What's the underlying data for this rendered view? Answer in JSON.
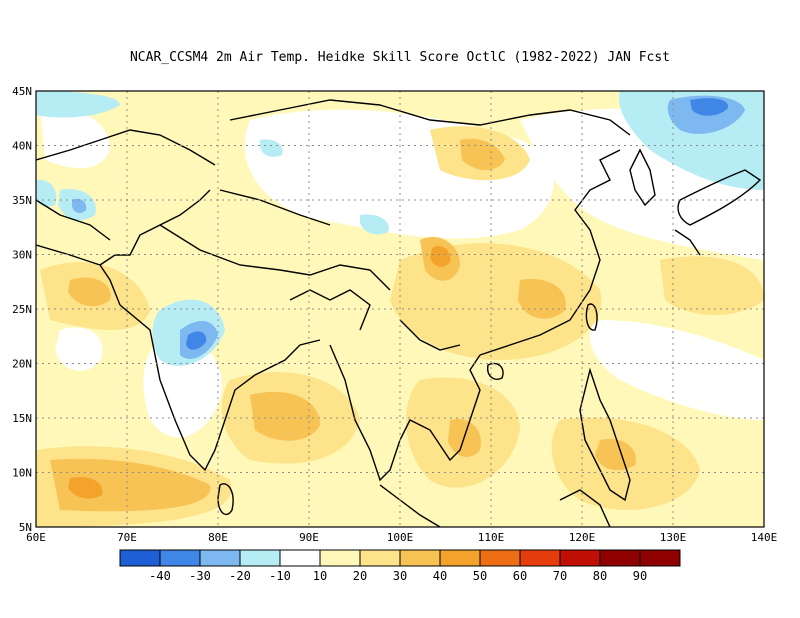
{
  "title": "NCAR_CCSM4  2m Air Temp. Heidke Skill Score OctlC (1982-2022) JAN Fcst",
  "map": {
    "lat_labels": [
      "45N",
      "40N",
      "35N",
      "30N",
      "25N",
      "20N",
      "15N",
      "10N",
      "5N"
    ],
    "lon_labels": [
      "60E",
      "70E",
      "80E",
      "90E",
      "100E",
      "110E",
      "120E",
      "130E",
      "140E"
    ],
    "lon_range": [
      60,
      140
    ],
    "lat_range": [
      5,
      45
    ],
    "grid": "dotted"
  },
  "colorbar": {
    "labels": [
      "-40",
      "-30",
      "-20",
      "-10",
      "10",
      "20",
      "30",
      "40",
      "50",
      "60",
      "70",
      "80",
      "90"
    ],
    "colors": [
      "#1f5fd6",
      "#3f86e6",
      "#7eb8f0",
      "#b6ecf4",
      "#ffffff",
      "#fff8b8",
      "#fde38a",
      "#f8c355",
      "#f3a32c",
      "#ee6f13",
      "#e63d0c",
      "#c01006",
      "#8f0000"
    ]
  },
  "palette": {
    "neg40": "#1f5fd6",
    "neg30": "#3f86e6",
    "neg20": "#7eb8f0",
    "neg10": "#b6ecf4",
    "zero": "#ffffff",
    "p10": "#fff8b8",
    "p20": "#fde38a",
    "p30": "#f8c355",
    "p40": "#f3a32c"
  }
}
